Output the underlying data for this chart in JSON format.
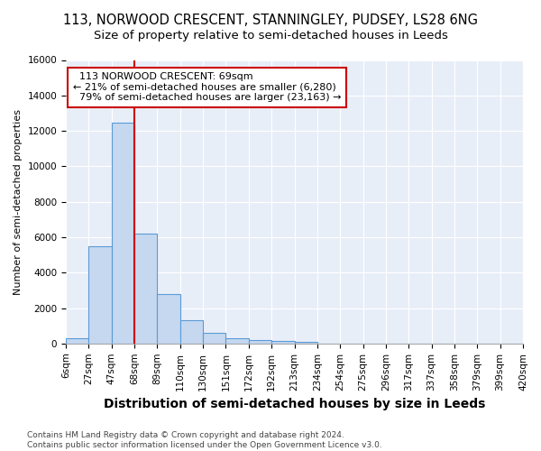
{
  "title": "113, NORWOOD CRESCENT, STANNINGLEY, PUDSEY, LS28 6NG",
  "subtitle": "Size of property relative to semi-detached houses in Leeds",
  "xlabel": "Distribution of semi-detached houses by size in Leeds",
  "ylabel": "Number of semi-detached properties",
  "footnote": "Contains HM Land Registry data © Crown copyright and database right 2024.\nContains public sector information licensed under the Open Government Licence v3.0.",
  "bar_values": [
    310,
    5500,
    12450,
    6200,
    2800,
    1300,
    600,
    280,
    200,
    150,
    100,
    0,
    0,
    0,
    0,
    0,
    0,
    0,
    0,
    0
  ],
  "bin_labels": [
    "6sqm",
    "27sqm",
    "47sqm",
    "68sqm",
    "89sqm",
    "110sqm",
    "130sqm",
    "151sqm",
    "172sqm",
    "192sqm",
    "213sqm",
    "234sqm",
    "254sqm",
    "275sqm",
    "296sqm",
    "317sqm",
    "337sqm",
    "358sqm",
    "379sqm",
    "399sqm",
    "420sqm"
  ],
  "bar_color": "#c5d8f0",
  "bar_edge_color": "#5b9bd5",
  "property_label": "113 NORWOOD CRESCENT: 69sqm",
  "pct_smaller": 21,
  "pct_larger": 79,
  "n_smaller": 6280,
  "n_larger": 23163,
  "vline_x": 2.5,
  "annotation_box_facecolor": "#ffffff",
  "annotation_box_edgecolor": "#cc0000",
  "ylim": [
    0,
    16000
  ],
  "yticks": [
    0,
    2000,
    4000,
    6000,
    8000,
    10000,
    12000,
    14000,
    16000
  ],
  "fig_facecolor": "#ffffff",
  "ax_facecolor": "#e8eef8",
  "grid_color": "#ffffff",
  "title_fontsize": 10.5,
  "subtitle_fontsize": 9.5,
  "xlabel_fontsize": 10,
  "ylabel_fontsize": 8,
  "tick_fontsize": 7.5,
  "annotation_fontsize": 8,
  "footnote_fontsize": 6.5
}
